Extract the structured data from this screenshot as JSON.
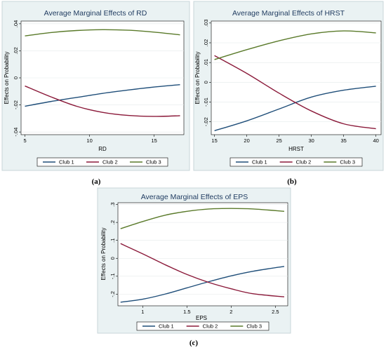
{
  "captions": [
    "(a)",
    "(b)",
    "(c)"
  ],
  "colors": {
    "club1": "#1f4e79",
    "club2": "#8b1a3a",
    "club3": "#5a7a2a"
  },
  "chart_data": [
    {
      "type": "line",
      "title": "Average Marginal Effects of RD",
      "xlabel": "RD",
      "ylabel": "Effects on Probability",
      "xlim": [
        4.7,
        17.3
      ],
      "ylim": [
        -0.042,
        0.042
      ],
      "xticks": [
        5,
        10,
        15
      ],
      "xtick_labels": [
        "5",
        "10",
        "15"
      ],
      "yticks": [
        -0.04,
        -0.02,
        0,
        0.02,
        0.04
      ],
      "ytick_labels": [
        "-.04",
        "-.02",
        "0",
        ".02",
        ".04"
      ],
      "legend": [
        "Club 1",
        "Club 2",
        "Club 3"
      ],
      "legend_position": "bottom",
      "x": [
        5,
        7,
        9,
        11,
        13,
        15,
        17
      ],
      "series": [
        {
          "name": "Club 1",
          "values": [
            -0.021,
            -0.0175,
            -0.0145,
            -0.0115,
            -0.009,
            -0.0068,
            -0.005
          ]
        },
        {
          "name": "Club 2",
          "values": [
            -0.006,
            -0.014,
            -0.021,
            -0.0255,
            -0.0278,
            -0.0285,
            -0.028
          ]
        },
        {
          "name": "Club 3",
          "values": [
            0.031,
            0.0335,
            0.035,
            0.0356,
            0.0352,
            0.0338,
            0.0318
          ]
        }
      ]
    },
    {
      "type": "line",
      "title": "Average Marginal Effects of HRST",
      "xlabel": "HRST",
      "ylabel": "Effects on Probability",
      "xlim": [
        14.5,
        40.8
      ],
      "ylim": [
        -0.0265,
        0.031
      ],
      "xticks": [
        15,
        20,
        25,
        30,
        35,
        40
      ],
      "xtick_labels": [
        "15",
        "20",
        "25",
        "30",
        "35",
        "40"
      ],
      "yticks": [
        -0.02,
        -0.01,
        0,
        0.01,
        0.02,
        0.03
      ],
      "ytick_labels": [
        "-.02",
        "-.01",
        "0",
        ".01",
        ".02",
        ".03"
      ],
      "legend": [
        "Club 1",
        "Club 2",
        "Club 3"
      ],
      "legend_position": "bottom",
      "x": [
        15,
        20,
        25,
        30,
        35,
        40
      ],
      "series": [
        {
          "name": "Club 1",
          "values": [
            -0.0245,
            -0.0195,
            -0.0135,
            -0.0075,
            -0.004,
            -0.002
          ]
        },
        {
          "name": "Club 2",
          "values": [
            0.0135,
            0.0045,
            -0.0055,
            -0.0145,
            -0.021,
            -0.0235
          ]
        },
        {
          "name": "Club 3",
          "values": [
            0.0115,
            0.0165,
            0.021,
            0.0245,
            0.026,
            0.025
          ]
        }
      ]
    },
    {
      "type": "line",
      "title": "Average Marginal Effects of EPS",
      "xlabel": "EPS",
      "ylabel": "Effects on Probability",
      "xlim": [
        0.72,
        2.64
      ],
      "ylim": [
        -0.265,
        0.31
      ],
      "xticks": [
        1,
        1.5,
        2,
        2.5
      ],
      "xtick_labels": [
        "1",
        "1.5",
        "2",
        "2.5"
      ],
      "yticks": [
        -0.2,
        -0.1,
        0,
        0.1,
        0.2,
        0.3
      ],
      "ytick_labels": [
        "-.2",
        "-.1",
        "0",
        ".1",
        ".2",
        ".3"
      ],
      "legend": [
        "Club 1",
        "Club 2",
        "Club 3"
      ],
      "legend_position": "bottom",
      "x": [
        0.75,
        1,
        1.25,
        1.5,
        1.75,
        2,
        2.25,
        2.6
      ],
      "series": [
        {
          "name": "Club 1",
          "values": [
            -0.245,
            -0.228,
            -0.2,
            -0.165,
            -0.13,
            -0.098,
            -0.072,
            -0.045
          ]
        },
        {
          "name": "Club 2",
          "values": [
            0.082,
            0.025,
            -0.035,
            -0.09,
            -0.135,
            -0.17,
            -0.198,
            -0.215
          ]
        },
        {
          "name": "Club 3",
          "values": [
            0.165,
            0.205,
            0.24,
            0.262,
            0.275,
            0.278,
            0.275,
            0.262
          ]
        }
      ]
    }
  ]
}
